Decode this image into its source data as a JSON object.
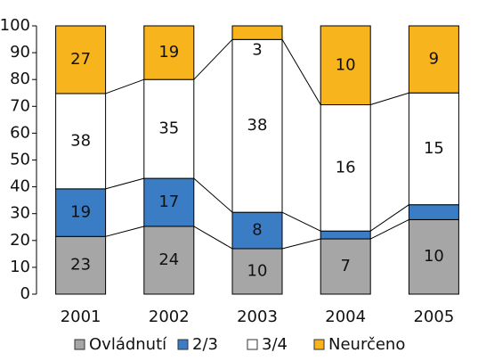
{
  "chart_data": {
    "type": "bar",
    "stacked": "percent",
    "categories": [
      "2001",
      "2002",
      "2003",
      "2004",
      "2005"
    ],
    "series": [
      {
        "name": "Ovládnutí",
        "color": "#a6a6a6",
        "values": [
          23,
          24,
          10,
          7,
          10
        ]
      },
      {
        "name": "2/3",
        "color": "#3b7dc4",
        "values": [
          19,
          17,
          8,
          1,
          2
        ]
      },
      {
        "name": "3/4",
        "color": "#ffffff",
        "values": [
          38,
          35,
          38,
          16,
          15
        ]
      },
      {
        "name": "Neurčeno",
        "color": "#f8b41c",
        "values": [
          27,
          19,
          3,
          10,
          9
        ]
      }
    ],
    "ylim": [
      0,
      100
    ],
    "yticks": [
      0,
      10,
      20,
      30,
      40,
      50,
      60,
      70,
      80,
      90,
      100
    ],
    "grid": false,
    "legend": "bottom"
  }
}
